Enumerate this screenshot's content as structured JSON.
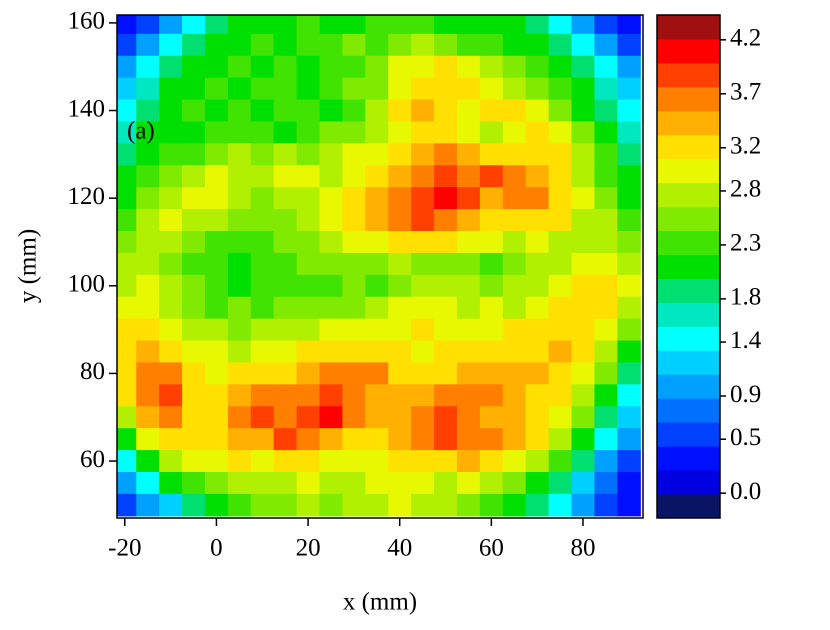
{
  "chart_data": {
    "type": "heatmap",
    "x_label": "x (mm)",
    "y_label": "y (mm)",
    "annotation": "(a)",
    "x": [
      -20,
      -15,
      -10,
      -5,
      0,
      5,
      10,
      15,
      20,
      25,
      30,
      35,
      40,
      45,
      50,
      55,
      60,
      65,
      70,
      75,
      80,
      85,
      90
    ],
    "y": [
      160,
      155,
      150,
      145,
      140,
      135,
      130,
      125,
      120,
      115,
      110,
      105,
      100,
      95,
      90,
      85,
      80,
      75,
      70,
      65,
      60,
      55,
      50
    ],
    "z": [
      [
        0.4,
        0.5,
        0.9,
        1.4,
        1.9,
        2.1,
        2.2,
        2.2,
        2.3,
        2.2,
        2.2,
        2.3,
        2.4,
        2.3,
        2.2,
        2.1,
        2.2,
        2.0,
        1.9,
        1.4,
        0.9,
        0.5,
        0.4
      ],
      [
        0.5,
        0.9,
        1.4,
        1.9,
        2.0,
        2.2,
        2.3,
        2.2,
        2.4,
        2.3,
        2.5,
        2.4,
        2.6,
        2.7,
        2.5,
        2.4,
        2.3,
        2.2,
        2.1,
        1.9,
        1.4,
        0.9,
        0.5
      ],
      [
        0.9,
        1.4,
        1.8,
        2.1,
        2.2,
        2.3,
        2.2,
        2.3,
        2.2,
        2.4,
        2.3,
        2.5,
        2.9,
        3.0,
        3.1,
        2.9,
        2.8,
        2.6,
        2.3,
        2.1,
        1.8,
        1.4,
        0.9
      ],
      [
        1.2,
        1.6,
        2.0,
        2.2,
        2.3,
        2.2,
        2.4,
        2.3,
        2.2,
        2.3,
        2.5,
        2.6,
        3.0,
        3.2,
        3.3,
        3.1,
        3.0,
        2.8,
        2.6,
        2.3,
        2.0,
        1.6,
        1.2
      ],
      [
        1.5,
        1.9,
        2.1,
        2.3,
        2.2,
        2.3,
        2.2,
        2.4,
        2.3,
        2.2,
        2.4,
        2.7,
        3.2,
        3.4,
        3.3,
        3.0,
        3.1,
        3.2,
        2.9,
        2.6,
        2.2,
        1.9,
        1.5
      ],
      [
        1.7,
        2.0,
        2.2,
        2.2,
        2.3,
        2.4,
        2.3,
        2.2,
        2.4,
        2.5,
        2.6,
        2.8,
        3.0,
        3.3,
        3.1,
        2.9,
        2.8,
        3.0,
        3.2,
        2.9,
        2.5,
        2.0,
        1.7
      ],
      [
        1.9,
        2.1,
        2.3,
        2.4,
        2.5,
        2.7,
        2.6,
        2.8,
        2.6,
        2.7,
        2.9,
        3.0,
        3.2,
        3.4,
        3.6,
        3.4,
        3.3,
        3.2,
        3.3,
        3.1,
        2.7,
        2.3,
        1.9
      ],
      [
        2.0,
        2.3,
        2.6,
        2.8,
        2.9,
        2.8,
        2.7,
        2.9,
        3.0,
        2.8,
        3.0,
        3.2,
        3.5,
        3.7,
        3.8,
        3.7,
        3.8,
        3.6,
        3.5,
        3.2,
        2.8,
        2.4,
        2.0
      ],
      [
        2.2,
        2.6,
        2.8,
        2.9,
        3.0,
        2.8,
        2.6,
        2.7,
        2.8,
        3.0,
        3.2,
        3.5,
        3.7,
        3.9,
        4.0,
        3.8,
        3.5,
        3.6,
        3.7,
        3.3,
        2.9,
        2.6,
        2.2
      ],
      [
        2.3,
        2.7,
        2.9,
        2.8,
        2.7,
        2.6,
        2.5,
        2.6,
        2.7,
        2.9,
        3.3,
        3.4,
        3.6,
        3.8,
        3.6,
        3.4,
        3.3,
        3.2,
        3.3,
        3.1,
        2.8,
        2.7,
        2.4
      ],
      [
        2.5,
        2.8,
        2.7,
        2.5,
        2.4,
        2.3,
        2.4,
        2.5,
        2.6,
        2.7,
        2.9,
        3.0,
        3.2,
        3.3,
        3.1,
        3.0,
        2.9,
        2.8,
        2.9,
        2.8,
        2.7,
        2.8,
        2.6
      ],
      [
        2.7,
        2.8,
        2.6,
        2.4,
        2.3,
        2.2,
        2.4,
        2.3,
        2.5,
        2.6,
        2.5,
        2.6,
        2.7,
        2.5,
        2.6,
        2.5,
        2.4,
        2.6,
        2.7,
        2.8,
        2.9,
        3.0,
        2.8
      ],
      [
        2.8,
        2.9,
        2.7,
        2.5,
        2.3,
        2.2,
        2.3,
        2.4,
        2.3,
        2.4,
        2.5,
        2.4,
        2.6,
        2.7,
        2.8,
        2.7,
        2.6,
        2.7,
        2.8,
        3.0,
        3.1,
        3.2,
        2.9
      ],
      [
        3.0,
        3.0,
        2.8,
        2.6,
        2.4,
        2.5,
        2.4,
        2.5,
        2.6,
        2.5,
        2.6,
        2.8,
        2.9,
        3.0,
        2.9,
        2.8,
        2.9,
        2.8,
        3.0,
        3.2,
        3.3,
        3.1,
        2.8
      ],
      [
        3.1,
        3.2,
        3.0,
        2.8,
        2.7,
        2.6,
        2.7,
        2.8,
        2.7,
        2.9,
        3.0,
        2.9,
        3.0,
        3.1,
        3.0,
        2.9,
        3.0,
        3.1,
        3.2,
        3.3,
        3.2,
        3.0,
        2.6
      ],
      [
        3.2,
        3.4,
        3.3,
        3.0,
        2.9,
        2.8,
        2.9,
        3.0,
        3.1,
        3.2,
        3.3,
        3.2,
        3.1,
        3.0,
        3.1,
        3.2,
        3.3,
        3.2,
        3.3,
        3.4,
        3.2,
        2.8,
        2.2
      ],
      [
        3.3,
        3.6,
        3.7,
        3.2,
        3.0,
        3.1,
        3.2,
        3.3,
        3.5,
        3.6,
        3.7,
        3.6,
        3.3,
        3.2,
        3.3,
        3.4,
        3.5,
        3.4,
        3.5,
        3.3,
        3.0,
        2.5,
        1.9
      ],
      [
        3.2,
        3.7,
        3.8,
        3.3,
        3.1,
        3.4,
        3.6,
        3.7,
        3.6,
        3.8,
        3.7,
        3.5,
        3.4,
        3.5,
        3.6,
        3.7,
        3.6,
        3.5,
        3.3,
        3.2,
        2.8,
        2.2,
        1.5
      ],
      [
        2.8,
        3.5,
        3.6,
        3.2,
        3.3,
        3.6,
        3.8,
        3.7,
        3.9,
        4.0,
        3.6,
        3.4,
        3.5,
        3.6,
        3.8,
        3.6,
        3.5,
        3.4,
        3.2,
        3.0,
        2.6,
        1.8,
        1.2
      ],
      [
        2.2,
        3.0,
        3.2,
        3.1,
        3.2,
        3.4,
        3.5,
        3.8,
        3.7,
        3.5,
        3.3,
        3.2,
        3.4,
        3.7,
        3.8,
        3.7,
        3.6,
        3.4,
        3.1,
        2.8,
        2.2,
        1.5,
        0.9
      ],
      [
        1.5,
        2.2,
        2.8,
        3.0,
        3.0,
        3.1,
        3.0,
        3.2,
        3.1,
        3.0,
        2.9,
        3.0,
        3.1,
        3.3,
        3.2,
        3.4,
        3.2,
        3.0,
        2.7,
        2.3,
        1.8,
        1.1,
        0.6
      ],
      [
        0.9,
        1.5,
        2.0,
        2.4,
        2.6,
        2.8,
        2.7,
        2.8,
        2.9,
        2.8,
        2.7,
        2.9,
        3.0,
        2.9,
        2.8,
        2.9,
        2.7,
        2.5,
        2.2,
        1.8,
        1.3,
        0.8,
        0.4
      ],
      [
        0.5,
        0.9,
        1.3,
        1.8,
        2.1,
        2.4,
        2.5,
        2.6,
        2.7,
        2.6,
        2.8,
        2.7,
        2.9,
        2.8,
        2.7,
        2.6,
        2.4,
        2.2,
        1.9,
        1.4,
        0.9,
        0.5,
        0.3
      ]
    ],
    "xlim": [
      -21.7,
      93.1
    ],
    "ylim": [
      47.0,
      161.8
    ],
    "xticks": [
      -20,
      0,
      20,
      40,
      60,
      80
    ],
    "yticks": [
      60,
      80,
      100,
      120,
      140,
      160
    ],
    "colorbar": {
      "clim": [
        -0.23,
        4.43
      ],
      "colors": [
        "#0a1464",
        "#0000e0",
        "#0010ff",
        "#0040ff",
        "#0070ff",
        "#00a0ff",
        "#00d0ff",
        "#00ffff",
        "#00e8c0",
        "#00e070",
        "#00e000",
        "#40e400",
        "#80ea00",
        "#b0f000",
        "#e8f800",
        "#ffe000",
        "#ffb000",
        "#ff8000",
        "#ff4000",
        "#ff0000",
        "#a01010"
      ],
      "ticks": [
        {
          "value": 0,
          "label": "0.0"
        },
        0.5,
        0.9,
        1.4,
        1.8,
        2.3,
        2.8,
        3.2,
        3.7,
        4.2
      ]
    }
  }
}
